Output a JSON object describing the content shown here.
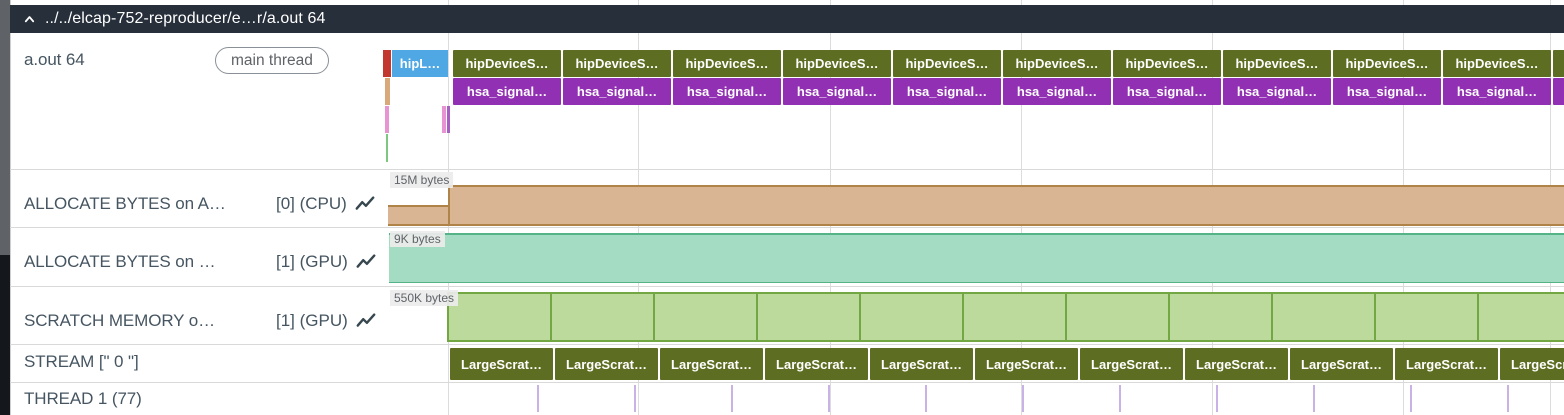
{
  "header": {
    "title": "../../elcap-752-reproducer/e…r/a.out 64"
  },
  "process_track": {
    "name": "a.out 64",
    "badge": "main thread",
    "first_slice": "hipL…",
    "api_row": {
      "label": "hipDeviceS…",
      "count": 11
    },
    "signal_row": {
      "label": "hsa_signal…",
      "count": 11
    }
  },
  "counter_tracks": [
    {
      "name": "ALLOCATE BYTES on A…",
      "id_suffix": "[0] (CPU)",
      "value_label": "15M bytes"
    },
    {
      "name": "ALLOCATE BYTES on …",
      "id_suffix": "[1] (GPU)",
      "value_label": "9K bytes"
    },
    {
      "name": "SCRATCH MEMORY o…",
      "id_suffix": "[1] (GPU)",
      "value_label": "550K bytes"
    }
  ],
  "scratch_blocks": {
    "count": 11
  },
  "stream_track": {
    "name": "STREAM [\" 0 \"]",
    "slice_label": "LargeScrat…",
    "count": 11
  },
  "thread_track": {
    "name": "THREAD 1 (77)",
    "tick_count": 11
  },
  "colors": {
    "header_bg": "#272f3b",
    "slice_blue": "#4fa7e3",
    "slice_red": "#c2382e",
    "slice_olive": "#5d6d21",
    "slice_purple": "#9130b2",
    "sliver_tan": "#d9a97c",
    "sliver_pink": "#e694d2",
    "sliver_green": "#7cc87f",
    "sliver_purple": "#a85fc2",
    "counter_tan_fill": "#d9b593",
    "counter_tan_line": "#b08349",
    "counter_teal_fill": "#a3dcc3",
    "counter_teal_line": "#56b388",
    "counter_green_fill": "#bcda9b",
    "counter_green_line": "#73a744",
    "thread_tick": "#c9b2e6",
    "grid_line": "#dcdcdc",
    "text_dark": "#455561",
    "text_muted": "#5f6368",
    "scrollbar_thumb": "#5f6368",
    "scrollbar_track": "#14181c"
  }
}
